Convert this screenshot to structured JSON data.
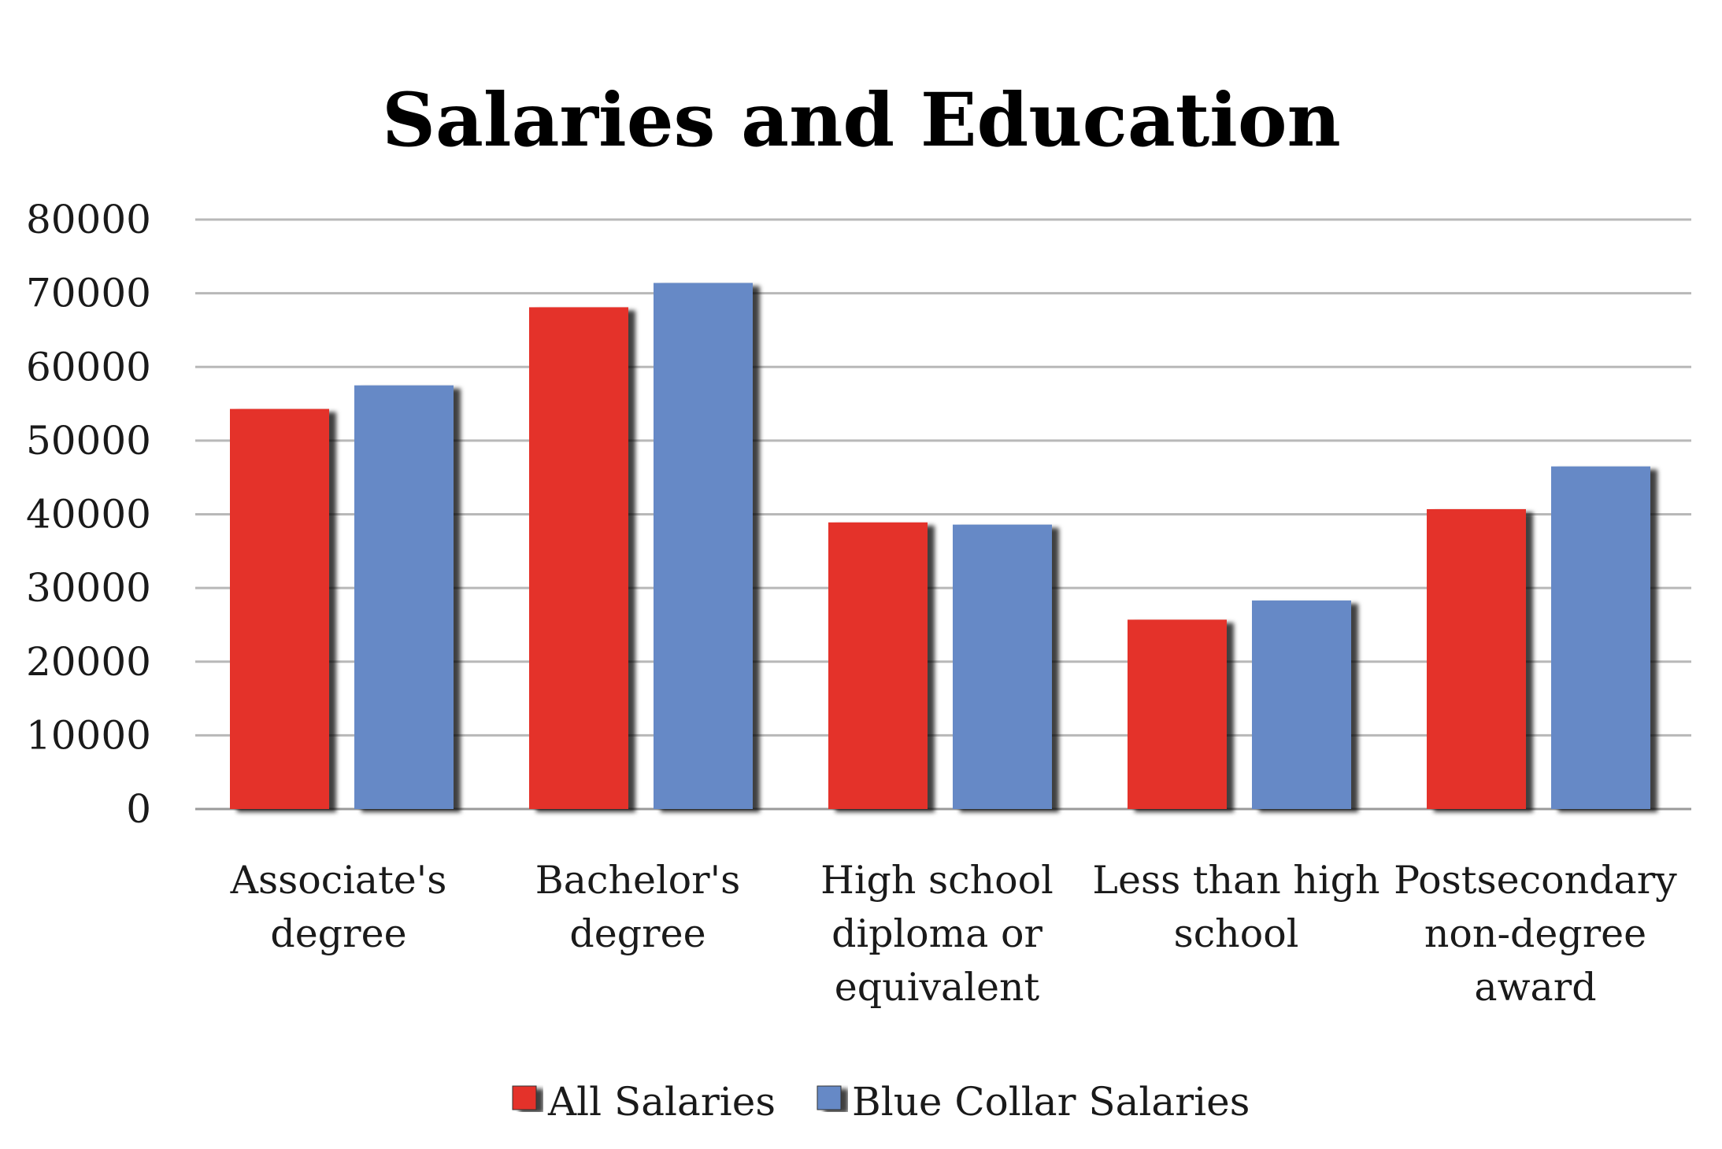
{
  "colors": {
    "all_salaries": "#e4322b",
    "blue_collar_salaries": "#6689c6"
  },
  "chart_data": {
    "type": "bar",
    "title": "Salaries and Education",
    "xlabel": "",
    "ylabel": "",
    "ylim": [
      0,
      80000
    ],
    "yticks": [
      "0",
      "10000",
      "20000",
      "30000",
      "40000",
      "50000",
      "60000",
      "70000",
      "80000"
    ],
    "grid": true,
    "legend_position": "bottom",
    "categories": [
      [
        "Associate's",
        "degree"
      ],
      [
        "Bachelor's",
        "degree"
      ],
      [
        "High school",
        "diploma or",
        "equivalent"
      ],
      [
        "Less than high",
        "school"
      ],
      [
        "Postsecondary",
        "non-degree",
        "award"
      ]
    ],
    "series": [
      {
        "name": "All Salaries",
        "color": "#e4322b",
        "values": [
          54300,
          68100,
          38900,
          25700,
          40700
        ]
      },
      {
        "name": "Blue Collar Salaries",
        "color": "#6689c6",
        "values": [
          57500,
          71400,
          38600,
          28300,
          46500
        ]
      }
    ]
  }
}
